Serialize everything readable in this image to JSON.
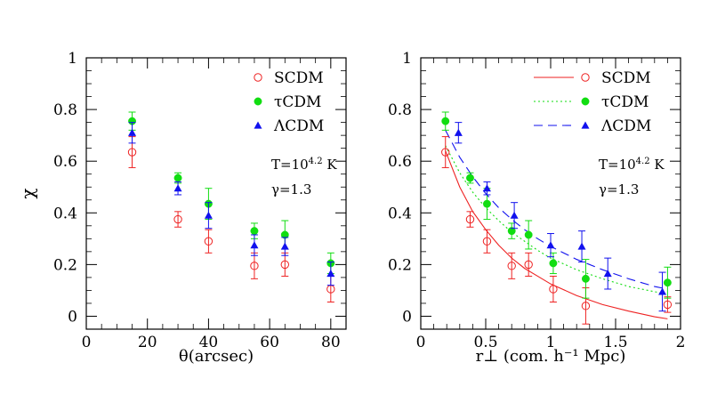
{
  "chart_data": [
    {
      "type": "scatter",
      "xlabel": "θ(arcsec)",
      "ylabel": "χ",
      "xlim": [
        0,
        85
      ],
      "ylim": [
        -0.05,
        1.0
      ],
      "xticks": [
        "0",
        "20",
        "40",
        "60",
        "80"
      ],
      "yticks": [
        "0",
        "0.2",
        "0.4",
        "0.6",
        "0.8",
        "1"
      ],
      "annotations": [
        "T=10",
        "4.2",
        " K",
        "γ=1.3"
      ],
      "series": [
        {
          "name": "SCDM",
          "color": "#ee2222",
          "marker": "circle-open",
          "x": [
            15,
            30,
            40,
            55,
            65,
            80
          ],
          "y": [
            0.635,
            0.375,
            0.29,
            0.195,
            0.2,
            0.105
          ],
          "err": [
            0.06,
            0.03,
            0.045,
            0.05,
            0.045,
            0.05
          ]
        },
        {
          "name": "τCDM",
          "color": "#11dd11",
          "marker": "circle-filled",
          "x": [
            15,
            30,
            40,
            55,
            65,
            80
          ],
          "y": [
            0.755,
            0.535,
            0.435,
            0.33,
            0.315,
            0.205
          ],
          "err": [
            0.035,
            0.02,
            0.06,
            0.03,
            0.055,
            0.04
          ]
        },
        {
          "name": "ΛCDM",
          "color": "#1111ee",
          "marker": "triangle-filled",
          "x": [
            15,
            30,
            40,
            55,
            65,
            80
          ],
          "y": [
            0.71,
            0.495,
            0.39,
            0.275,
            0.27,
            0.165
          ],
          "err": [
            0.04,
            0.025,
            0.05,
            0.04,
            0.035,
            0.045
          ]
        }
      ]
    },
    {
      "type": "scatter",
      "xlabel": "r⊥ (com. h⁻¹ Mpc)",
      "ylabel": "",
      "xlim": [
        0,
        2
      ],
      "ylim": [
        -0.05,
        1.0
      ],
      "xticks": [
        "0",
        "0.5",
        "1",
        "1.5",
        "2"
      ],
      "yticks": [
        "0",
        "0.2",
        "0.4",
        "0.6",
        "0.8",
        "1"
      ],
      "annotations": [
        "T=10",
        "4.2",
        " K",
        "γ=1.3"
      ],
      "series": [
        {
          "name": "SCDM",
          "color": "#ee2222",
          "marker": "circle-open",
          "line": "solid",
          "x": [
            0.19,
            0.38,
            0.51,
            0.7,
            0.83,
            1.02,
            1.27,
            1.9
          ],
          "y": [
            0.635,
            0.375,
            0.29,
            0.195,
            0.2,
            0.105,
            0.04,
            0.045
          ],
          "err": [
            0.06,
            0.03,
            0.045,
            0.05,
            0.045,
            0.05,
            0.07,
            0.03
          ],
          "fit_x": [
            0.19,
            0.3,
            0.4,
            0.5,
            0.6,
            0.7,
            0.8,
            0.9,
            1.0,
            1.2,
            1.4,
            1.6,
            1.8,
            1.9
          ],
          "fit_y": [
            0.64,
            0.5,
            0.405,
            0.335,
            0.275,
            0.225,
            0.185,
            0.155,
            0.125,
            0.08,
            0.045,
            0.02,
            -0.002,
            -0.01
          ]
        },
        {
          "name": "τCDM",
          "color": "#11dd11",
          "marker": "circle-filled",
          "line": "dotted",
          "x": [
            0.19,
            0.38,
            0.51,
            0.7,
            0.83,
            1.02,
            1.27,
            1.9
          ],
          "y": [
            0.755,
            0.535,
            0.435,
            0.33,
            0.315,
            0.205,
            0.145,
            0.13
          ],
          "err": [
            0.035,
            0.02,
            0.06,
            0.03,
            0.055,
            0.04,
            0.075,
            0.06
          ],
          "fit_x": [
            0.19,
            0.3,
            0.4,
            0.5,
            0.6,
            0.7,
            0.8,
            0.9,
            1.0,
            1.2,
            1.4,
            1.6,
            1.8,
            1.9
          ],
          "fit_y": [
            0.66,
            0.555,
            0.48,
            0.42,
            0.37,
            0.325,
            0.29,
            0.255,
            0.225,
            0.18,
            0.145,
            0.115,
            0.095,
            0.085
          ]
        },
        {
          "name": "ΛCDM",
          "color": "#1111ee",
          "marker": "triangle-filled",
          "line": "dashed",
          "x": [
            0.29,
            0.51,
            0.72,
            1.0,
            1.24,
            1.44,
            1.86
          ],
          "y": [
            0.71,
            0.495,
            0.39,
            0.275,
            0.27,
            0.165,
            0.095
          ],
          "err": [
            0.04,
            0.025,
            0.05,
            0.045,
            0.06,
            0.06,
            0.075
          ],
          "fit_x": [
            0.19,
            0.3,
            0.4,
            0.5,
            0.6,
            0.7,
            0.8,
            0.9,
            1.0,
            1.2,
            1.4,
            1.6,
            1.8,
            1.9
          ],
          "fit_y": [
            0.72,
            0.615,
            0.54,
            0.475,
            0.42,
            0.375,
            0.335,
            0.3,
            0.27,
            0.22,
            0.18,
            0.145,
            0.115,
            0.105
          ]
        }
      ]
    }
  ]
}
